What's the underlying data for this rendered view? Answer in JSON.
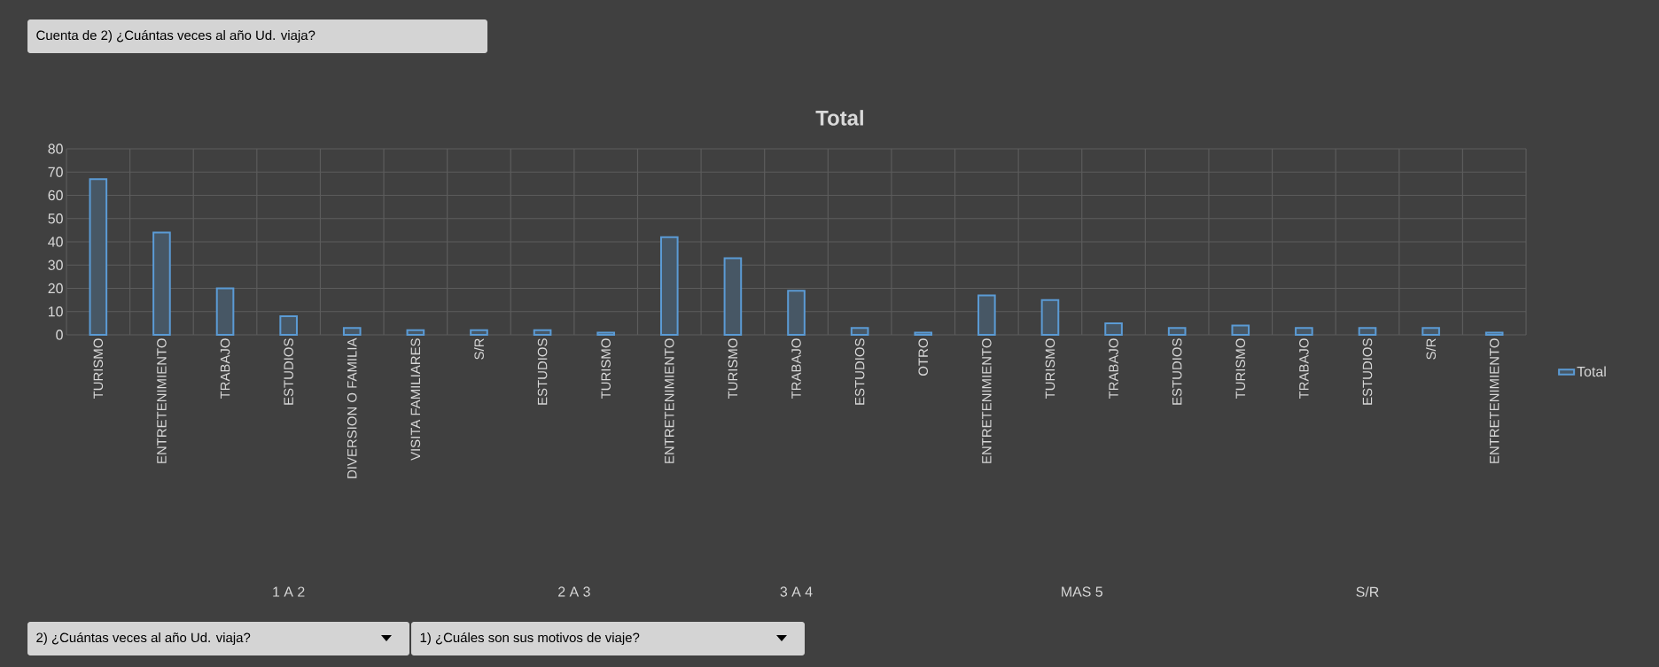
{
  "chart_data": {
    "type": "bar",
    "title": "Total",
    "categories": [
      "TURISMO",
      "ENTRETENIMIENTO",
      "TRABAJO",
      "ESTUDIOS",
      "DIVERSION O FAMILIA",
      "VISITA FAMILIARES",
      "S/R",
      "ESTUDIOS",
      "TURISMO",
      "ENTRETENIMIENTO",
      "TURISMO",
      "TRABAJO",
      "ESTUDIOS",
      "OTRO",
      "ENTRETENIMIENTO",
      "TURISMO",
      "TRABAJO",
      "ESTUDIOS",
      "TURISMO",
      "TRABAJO",
      "ESTUDIOS",
      "S/R",
      "ENTRETENIMIENTO"
    ],
    "series": [
      {
        "name": "Total",
        "color": "#5b9bd5",
        "values": [
          67,
          44,
          20,
          8,
          3,
          2,
          2,
          2,
          1,
          42,
          33,
          19,
          3,
          1,
          17,
          15,
          5,
          3,
          4,
          3,
          3,
          3,
          1
        ]
      }
    ],
    "ylim": [
      0,
      80
    ],
    "yticks": [
      0,
      10,
      20,
      30,
      40,
      50,
      60,
      70,
      80
    ],
    "grid": true,
    "legend": "right",
    "annotations": [
      "Cuenta de 2) ¿Cuántas veces al año Ud. viaja?",
      "2) ¿Cuántas veces al año Ud. viaja?",
      "1) ¿Cuáles son sus motivos de viaje?",
      "1 A 2",
      "2 A 3",
      "3 A 4",
      "MAS 5",
      "S/R"
    ]
  }
}
